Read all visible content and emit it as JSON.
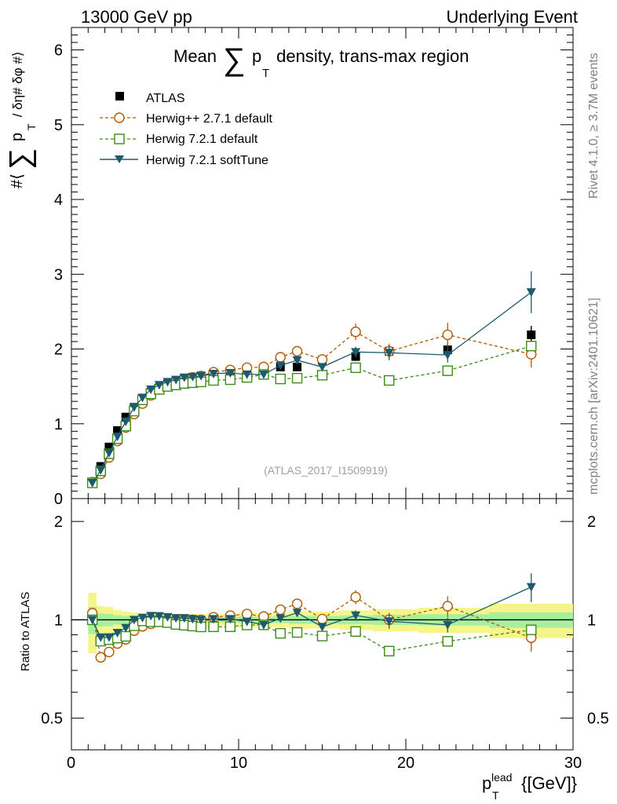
{
  "header": {
    "left": "13000 GeV pp",
    "right": "Underlying Event"
  },
  "side_labels": {
    "rivet": "Rivet 4.1.0, ≥ 3.7M events",
    "mcplots": "mcplots.cern.ch [arXiv:2401.10621]"
  },
  "watermark": "(ATLAS_2017_I1509919)",
  "chart_data": {
    "type": "scatter",
    "title": {
      "prefix": "Mean",
      "sum_symbol": "∑",
      "p": "p",
      "sub": "T",
      "suffix": " density, trans-max region"
    },
    "ylabel": {
      "prefix": "#⟨",
      "sum_symbol": "∑",
      "p": "p",
      "sub": "T",
      "suffix": " / δη# δφ #⟩"
    },
    "ratio_ylabel": "Ratio to ATLAS",
    "xlabel": {
      "p": "p",
      "sup": "lead",
      "sub": "T",
      "unit": " {[GeV]}"
    },
    "xlim": [
      0,
      30
    ],
    "ylim": [
      0,
      6.3
    ],
    "ratio_ylim": [
      0.4,
      2.35
    ],
    "x_ticks": [
      "0",
      "10",
      "20",
      "30"
    ],
    "y_ticks": [
      "0",
      "1",
      "2",
      "3",
      "4",
      "5",
      "6"
    ],
    "ratio_ticks": [
      "0.5",
      "1",
      "2"
    ],
    "x": [
      1.25,
      1.75,
      2.25,
      2.75,
      3.25,
      3.75,
      4.25,
      4.75,
      5.25,
      5.75,
      6.25,
      6.75,
      7.25,
      7.75,
      8.5,
      9.5,
      10.5,
      11.5,
      12.5,
      13.5,
      15.0,
      17.0,
      19.0,
      22.5,
      27.5
    ],
    "legend": [
      "ATLAS",
      "Herwig++ 2.7.1 default",
      "Herwig 7.2.1 default",
      "Herwig 7.2.1 softTune"
    ],
    "data": {
      "name": "ATLAS",
      "values": [
        0.21,
        0.43,
        0.69,
        0.91,
        1.09,
        1.22,
        1.33,
        1.42,
        1.48,
        1.53,
        1.57,
        1.6,
        1.62,
        1.64,
        1.66,
        1.67,
        1.68,
        1.72,
        1.76,
        1.76,
        1.85,
        1.9,
        1.97,
        1.99,
        2.19
      ],
      "errors": [
        0.02,
        0.02,
        0.03,
        0.03,
        0.03,
        0.03,
        0.03,
        0.03,
        0.03,
        0.03,
        0.03,
        0.03,
        0.03,
        0.03,
        0.03,
        0.03,
        0.04,
        0.04,
        0.04,
        0.05,
        0.05,
        0.06,
        0.07,
        0.08,
        0.12
      ]
    },
    "series": [
      {
        "name": "Herwig++ 2.7.1 default",
        "color": "#b35900",
        "marker": "circle",
        "dash": "dashed",
        "values": [
          0.22,
          0.33,
          0.55,
          0.77,
          0.95,
          1.13,
          1.27,
          1.38,
          1.46,
          1.52,
          1.57,
          1.6,
          1.62,
          1.64,
          1.69,
          1.72,
          1.75,
          1.76,
          1.89,
          1.97,
          1.86,
          2.23,
          1.97,
          2.19,
          1.93
        ],
        "errors": [
          0.02,
          0.02,
          0.02,
          0.02,
          0.02,
          0.02,
          0.02,
          0.02,
          0.02,
          0.02,
          0.02,
          0.02,
          0.02,
          0.02,
          0.03,
          0.03,
          0.03,
          0.04,
          0.05,
          0.06,
          0.06,
          0.11,
          0.1,
          0.16,
          0.18
        ]
      },
      {
        "name": "Herwig 7.2.1 default",
        "color": "#3c8c14",
        "marker": "square",
        "dash": "dashed",
        "values": [
          0.21,
          0.37,
          0.6,
          0.8,
          0.97,
          1.17,
          1.32,
          1.4,
          1.46,
          1.5,
          1.52,
          1.54,
          1.55,
          1.56,
          1.58,
          1.59,
          1.62,
          1.66,
          1.6,
          1.61,
          1.65,
          1.75,
          1.58,
          1.71,
          2.04
        ]
      },
      {
        "name": "Herwig 7.2.1 softTune",
        "color": "#1e5a6e",
        "marker": "triangle-down",
        "dash": "solid",
        "values": [
          0.21,
          0.38,
          0.61,
          0.83,
          1.03,
          1.22,
          1.35,
          1.46,
          1.52,
          1.56,
          1.59,
          1.62,
          1.63,
          1.64,
          1.67,
          1.68,
          1.66,
          1.66,
          1.78,
          1.85,
          1.76,
          1.96,
          1.95,
          1.92,
          2.76
        ],
        "errors": [
          0.02,
          0.02,
          0.02,
          0.02,
          0.02,
          0.02,
          0.02,
          0.02,
          0.02,
          0.02,
          0.02,
          0.02,
          0.02,
          0.02,
          0.03,
          0.03,
          0.03,
          0.03,
          0.04,
          0.05,
          0.05,
          0.07,
          0.1,
          0.1,
          0.28
        ]
      }
    ]
  }
}
